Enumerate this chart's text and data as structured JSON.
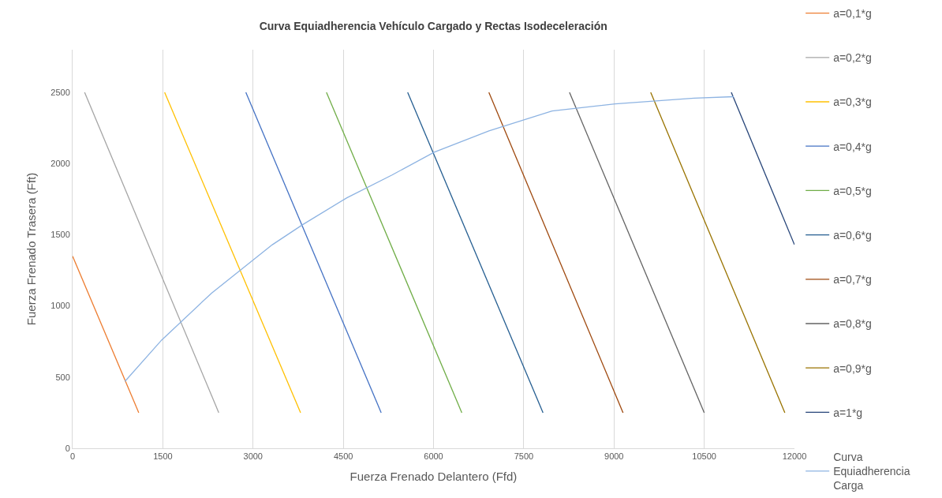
{
  "chart_data": {
    "type": "line",
    "title": "Curva Equiadherencia Vehículo Cargado y Rectas Isodeceleración",
    "xlabel": "Fuerza Frenado Delantero (Ffd)",
    "ylabel": "Fuerza Frenado Trasera (Fft)",
    "xlim": [
      0,
      12000
    ],
    "xticks": [
      0,
      1500,
      3000,
      4500,
      6000,
      7500,
      9000,
      10500,
      12000
    ],
    "ylim": [
      0,
      2800
    ],
    "yticks": [
      0,
      500,
      1000,
      1500,
      2000,
      2500
    ],
    "grid": "x",
    "legend": "right",
    "marker": "none",
    "line_style": "solid",
    "series": [
      {
        "name": "a=0,1*g",
        "color": "#ed7d31",
        "x": [
          0,
          1100
        ],
        "values": [
          1350,
          250
        ]
      },
      {
        "name": "a=0,2*g",
        "color": "#a5a5a5",
        "x": [
          200,
          2430
        ],
        "values": [
          2500,
          250
        ]
      },
      {
        "name": "a=0,3*g",
        "color": "#ffc000",
        "x": [
          1530,
          3790
        ],
        "values": [
          2500,
          250
        ]
      },
      {
        "name": "a=0,4*g",
        "color": "#4472c4",
        "x": [
          2880,
          5130
        ],
        "values": [
          2500,
          250
        ]
      },
      {
        "name": "a=0,5*g",
        "color": "#70ad47",
        "x": [
          4220,
          6470
        ],
        "values": [
          2500,
          250
        ]
      },
      {
        "name": "a=0,6*g",
        "color": "#255e91",
        "x": [
          5570,
          7820
        ],
        "values": [
          2500,
          250
        ]
      },
      {
        "name": "a=0,7*g",
        "color": "#9e480e",
        "x": [
          6920,
          9150
        ],
        "values": [
          2500,
          250
        ]
      },
      {
        "name": "a=0,8*g",
        "color": "#636363",
        "x": [
          8260,
          10500
        ],
        "values": [
          2500,
          250
        ]
      },
      {
        "name": "a=0,9*g",
        "color": "#997300",
        "x": [
          9610,
          11840
        ],
        "values": [
          2500,
          250
        ]
      },
      {
        "name": "a=1*g",
        "color": "#264478",
        "x": [
          10950,
          12000
        ],
        "values": [
          2500,
          1430
        ]
      },
      {
        "name": "Curva Equiadherencia Carga",
        "color": "#8db3e2",
        "x": [
          870,
          1480,
          2310,
          3320,
          3820,
          4560,
          5310,
          6010,
          6920,
          7970,
          9020,
          10330,
          10990
        ],
        "values": [
          470,
          760,
          1090,
          1430,
          1570,
          1760,
          1920,
          2080,
          2230,
          2370,
          2420,
          2460,
          2470
        ]
      }
    ]
  }
}
